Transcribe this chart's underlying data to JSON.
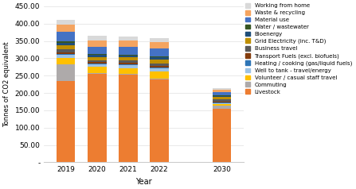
{
  "years": [
    "2019",
    "2020",
    "2021",
    "2022",
    "2030"
  ],
  "x_positions": [
    0,
    1,
    2,
    3,
    5
  ],
  "bar_width": 0.6,
  "categories": [
    "Livestock",
    "Commuting",
    "Volunteer / casual staff travel",
    "Well to tank - travel/energy",
    "Heating / cooking (gas/liquid fuels)",
    "Transport Fuels (excl. biofuels)",
    "Business travel",
    "Grid Electricity (inc. T&D)",
    "Bioenergy",
    "Water / wastewater",
    "Material use",
    "Waste & recycling",
    "Working from home"
  ],
  "colors": [
    "#F4812B",
    "#ADADAD",
    "#FFD700",
    "#9DC3E6",
    "#2E75B6",
    "#833C00",
    "#404040",
    "#BF8F00",
    "#1F4E79",
    "#375623",
    "#2E75B6",
    "#F4812B",
    "#BFBFBF"
  ],
  "segments": {
    "Livestock": [
      235,
      255,
      252,
      240,
      155
    ],
    "Commuting": [
      48,
      2,
      2,
      2,
      8
    ],
    "Volunteer / casual staff travel": [
      18,
      18,
      18,
      20,
      5
    ],
    "Well to tank - travel/energy": [
      8,
      7,
      8,
      8,
      3
    ],
    "Heating / cooking (gas/liquid fuels)": [
      3,
      3,
      3,
      3,
      2
    ],
    "Transport Fuels (excl. biofuels)": [
      5,
      4,
      5,
      5,
      3
    ],
    "Business travel": [
      8,
      5,
      5,
      7,
      5
    ],
    "Grid Electricity (inc. T&D)": [
      12,
      10,
      10,
      12,
      8
    ],
    "Bioenergy": [
      8,
      5,
      5,
      6,
      3
    ],
    "Water / wastewater": [
      3,
      3,
      3,
      3,
      2
    ],
    "Material use": [
      28,
      22,
      22,
      22,
      8
    ],
    "Waste & recycling": [
      20,
      18,
      18,
      18,
      7
    ],
    "Working from home": [
      15,
      12,
      12,
      12,
      5
    ]
  },
  "ylabel": "Tonnes of CO2 equivalent",
  "xlabel": "Year",
  "ylim": [
    0,
    450
  ],
  "ytick_labels": [
    "-",
    "50.00",
    "100.00",
    "150.00",
    "200.00",
    "250.00",
    "300.00",
    "350.00",
    "400.00",
    "450.00"
  ],
  "figsize": [
    4.47,
    2.38
  ],
  "dpi": 100,
  "background_color": "#FFFFFF",
  "grid_color": "#E0E0E0"
}
